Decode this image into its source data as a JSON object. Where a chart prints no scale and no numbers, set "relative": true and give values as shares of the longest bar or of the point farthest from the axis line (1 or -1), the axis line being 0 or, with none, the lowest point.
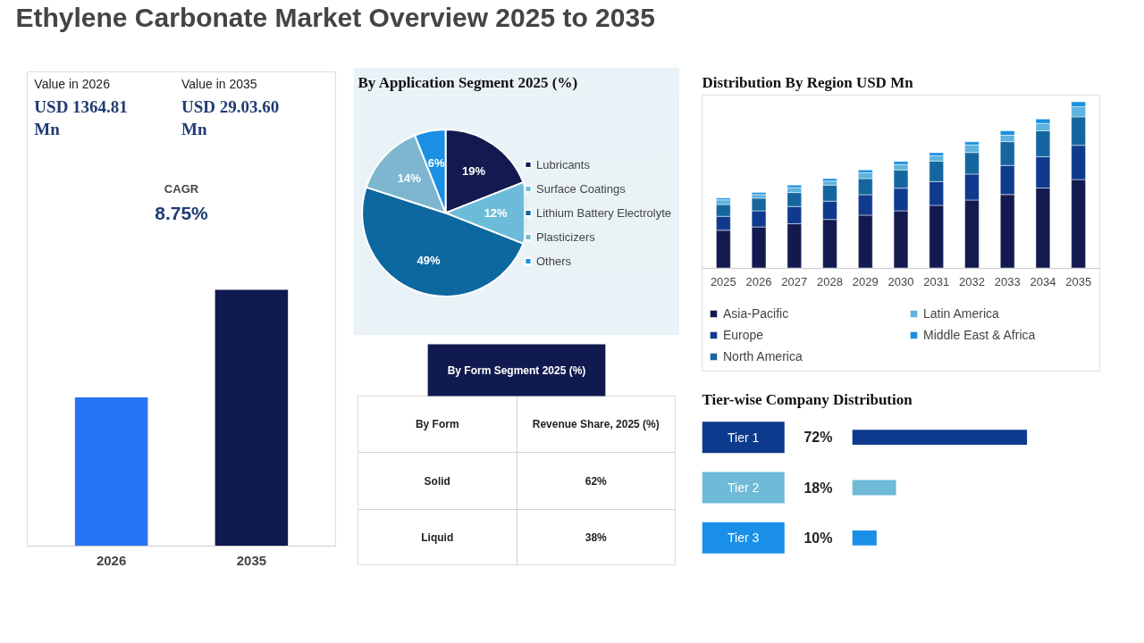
{
  "chart_data": [
    {
      "type": "other",
      "title": "Ethylene Carbonate Market Overview 2025 to 2035"
    },
    {
      "type": "bar",
      "relative": true,
      "categories": [
        "2026",
        "2035"
      ],
      "values": [
        0.58,
        1
      ],
      "colors": [
        "#2673f5",
        "#111a4f"
      ],
      "annotations": [
        "Value in 2026",
        "USD 1364.81 Mn",
        "Value in 2035",
        "USD 29.03.60 Mn",
        "CAGR",
        "8.75%"
      ]
    },
    {
      "type": "pie",
      "title": "By Application Segment 2025 (%)",
      "categories": [
        "Lubricants",
        "Surface Coatings",
        "Lithium Battery Electrolyte",
        "Plasticizers",
        "Others"
      ],
      "values": [
        19,
        12,
        49,
        14,
        6
      ],
      "colors": [
        "#121a4f",
        "#6cbcd9",
        "#0d68a0",
        "#7eb6cf",
        "#1a8fe3"
      ],
      "value_labels": [
        "19%",
        "12%",
        "49%",
        "14%",
        "6%"
      ],
      "legend": "right"
    },
    {
      "type": "other",
      "title": "By Form Segment 2025 (%)",
      "annotations": [
        "By Form",
        "Revenue Share, 2025 (%)",
        "Solid",
        "62%",
        "Liquid",
        "38%"
      ]
    },
    {
      "type": "bar",
      "stacked": true,
      "relative": true,
      "title": "Distribution By Region USD Mn",
      "categories": [
        "2025",
        "2026",
        "2027",
        "2028",
        "2029",
        "2030",
        "2031",
        "2032",
        "2033",
        "2034",
        "2035"
      ],
      "legend": "bottom",
      "series": [
        {
          "name": "Asia-Pacific",
          "color": "#121a4f",
          "values": [
            0.227,
            0.247,
            0.266,
            0.292,
            0.318,
            0.344,
            0.377,
            0.409,
            0.442,
            0.481,
            0.532
          ]
        },
        {
          "name": "Europe",
          "color": "#0f3a8e",
          "values": [
            0.084,
            0.097,
            0.104,
            0.11,
            0.123,
            0.136,
            0.143,
            0.156,
            0.175,
            0.188,
            0.206
          ]
        },
        {
          "name": "North America",
          "color": "#15669f",
          "values": [
            0.071,
            0.076,
            0.084,
            0.097,
            0.097,
            0.11,
            0.123,
            0.13,
            0.143,
            0.156,
            0.171
          ]
        },
        {
          "name": "Latin America",
          "color": "#5fb3dc",
          "values": [
            0.028,
            0.022,
            0.03,
            0.024,
            0.035,
            0.032,
            0.032,
            0.045,
            0.039,
            0.045,
            0.061
          ]
        },
        {
          "name": "Middle East & Africa",
          "color": "#1c8fe0",
          "values": [
            0.011,
            0.013,
            0.015,
            0.015,
            0.017,
            0.019,
            0.019,
            0.019,
            0.026,
            0.026,
            0.03
          ]
        }
      ]
    },
    {
      "type": "bar",
      "orientation": "horizontal",
      "title": "Tier-wise Company Distribution",
      "categories": [
        "Tier 1",
        "Tier 2",
        "Tier 3"
      ],
      "values": [
        72,
        18,
        10
      ],
      "colors": [
        "#0d3a8c",
        "#6fbad6",
        "#1a8fe8"
      ],
      "value_labels": [
        "72%",
        "18%",
        "10%"
      ]
    }
  ]
}
